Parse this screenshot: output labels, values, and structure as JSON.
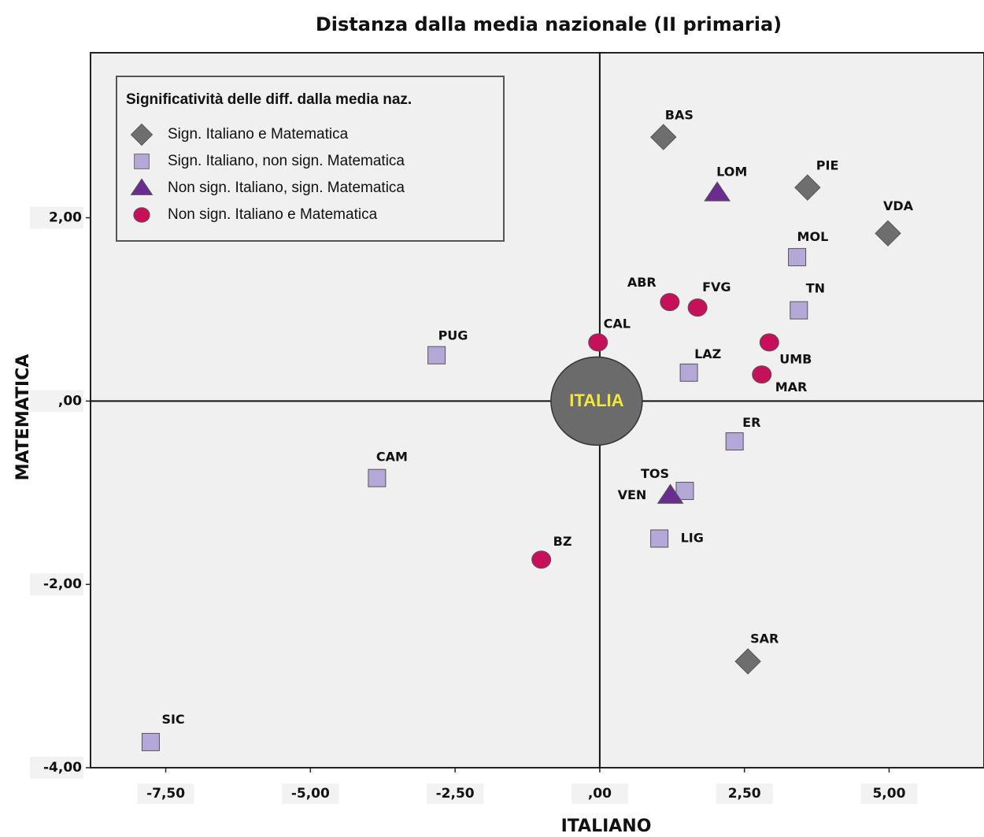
{
  "chart_data": {
    "type": "scatter",
    "title": "Distanza dalla media nazionale  (II primaria)",
    "x_label": "ITALIANO",
    "y_label": "MATEMATICA",
    "legend_title": "Significatività delle diff. dalla media naz.",
    "legend_position": "upper left",
    "xlim": [
      -8.8,
      6.64
    ],
    "ylim": [
      -4,
      3.8
    ],
    "xticks": [
      {
        "value": -7.5,
        "label": "-7,50"
      },
      {
        "value": -5,
        "label": "-5,00"
      },
      {
        "value": -2.5,
        "label": "-2,50"
      },
      {
        "value": 0,
        "label": ",00"
      },
      {
        "value": 2.5,
        "label": "2,50"
      },
      {
        "value": 5,
        "label": "5,00"
      }
    ],
    "yticks": [
      {
        "value": -4,
        "label": "-4,00"
      },
      {
        "value": -2,
        "label": "-2,00"
      },
      {
        "value": 0,
        "label": ",00"
      },
      {
        "value": 2,
        "label": "2,00"
      }
    ],
    "series": [
      {
        "name": "Sign. Italiano e Matematica",
        "marker": "diamond",
        "color": "#6e6e6e",
        "labels": [
          "BAS",
          "PIE",
          "VDA",
          "SAR"
        ],
        "x": [
          1.1,
          3.59,
          4.98,
          2.56
        ],
        "values": [
          2.88,
          2.33,
          1.83,
          -2.84
        ]
      },
      {
        "name": "Sign. Italiano, non sign. Matematica",
        "marker": "square",
        "color": "#b4a8d8",
        "labels": [
          "MOL",
          "TN",
          "PUG",
          "LAZ",
          "ER",
          "CAM",
          "TOS",
          "LIG",
          "SIC"
        ],
        "x": [
          3.41,
          3.44,
          -2.82,
          1.54,
          2.33,
          -3.85,
          1.47,
          1.03,
          -7.76
        ],
        "values": [
          1.57,
          0.99,
          0.5,
          0.31,
          -0.44,
          -0.84,
          -0.98,
          -1.5,
          -3.72
        ]
      },
      {
        "name": "Non sign. Italiano, sign. Matematica",
        "marker": "triangle",
        "color": "#6a2c8f",
        "labels": [
          "LOM",
          "VEN"
        ],
        "x": [
          2.03,
          1.22
        ],
        "values": [
          2.27,
          -1.03
        ]
      },
      {
        "name": "Non sign. Italiano e Matematica",
        "marker": "circle",
        "color": "#c8105a",
        "labels": [
          "ABR",
          "FVG",
          "CAL",
          "UMB",
          "MAR",
          "BZ"
        ],
        "x": [
          1.21,
          1.69,
          -0.03,
          2.93,
          2.8,
          -1.01
        ],
        "values": [
          1.08,
          1.02,
          0.64,
          0.64,
          0.29,
          -1.73
        ]
      }
    ],
    "reference": {
      "label": "ITALIA",
      "x": 0,
      "y": 0,
      "color": "#6b6b6b",
      "text_color": "#f3e83c"
    }
  }
}
